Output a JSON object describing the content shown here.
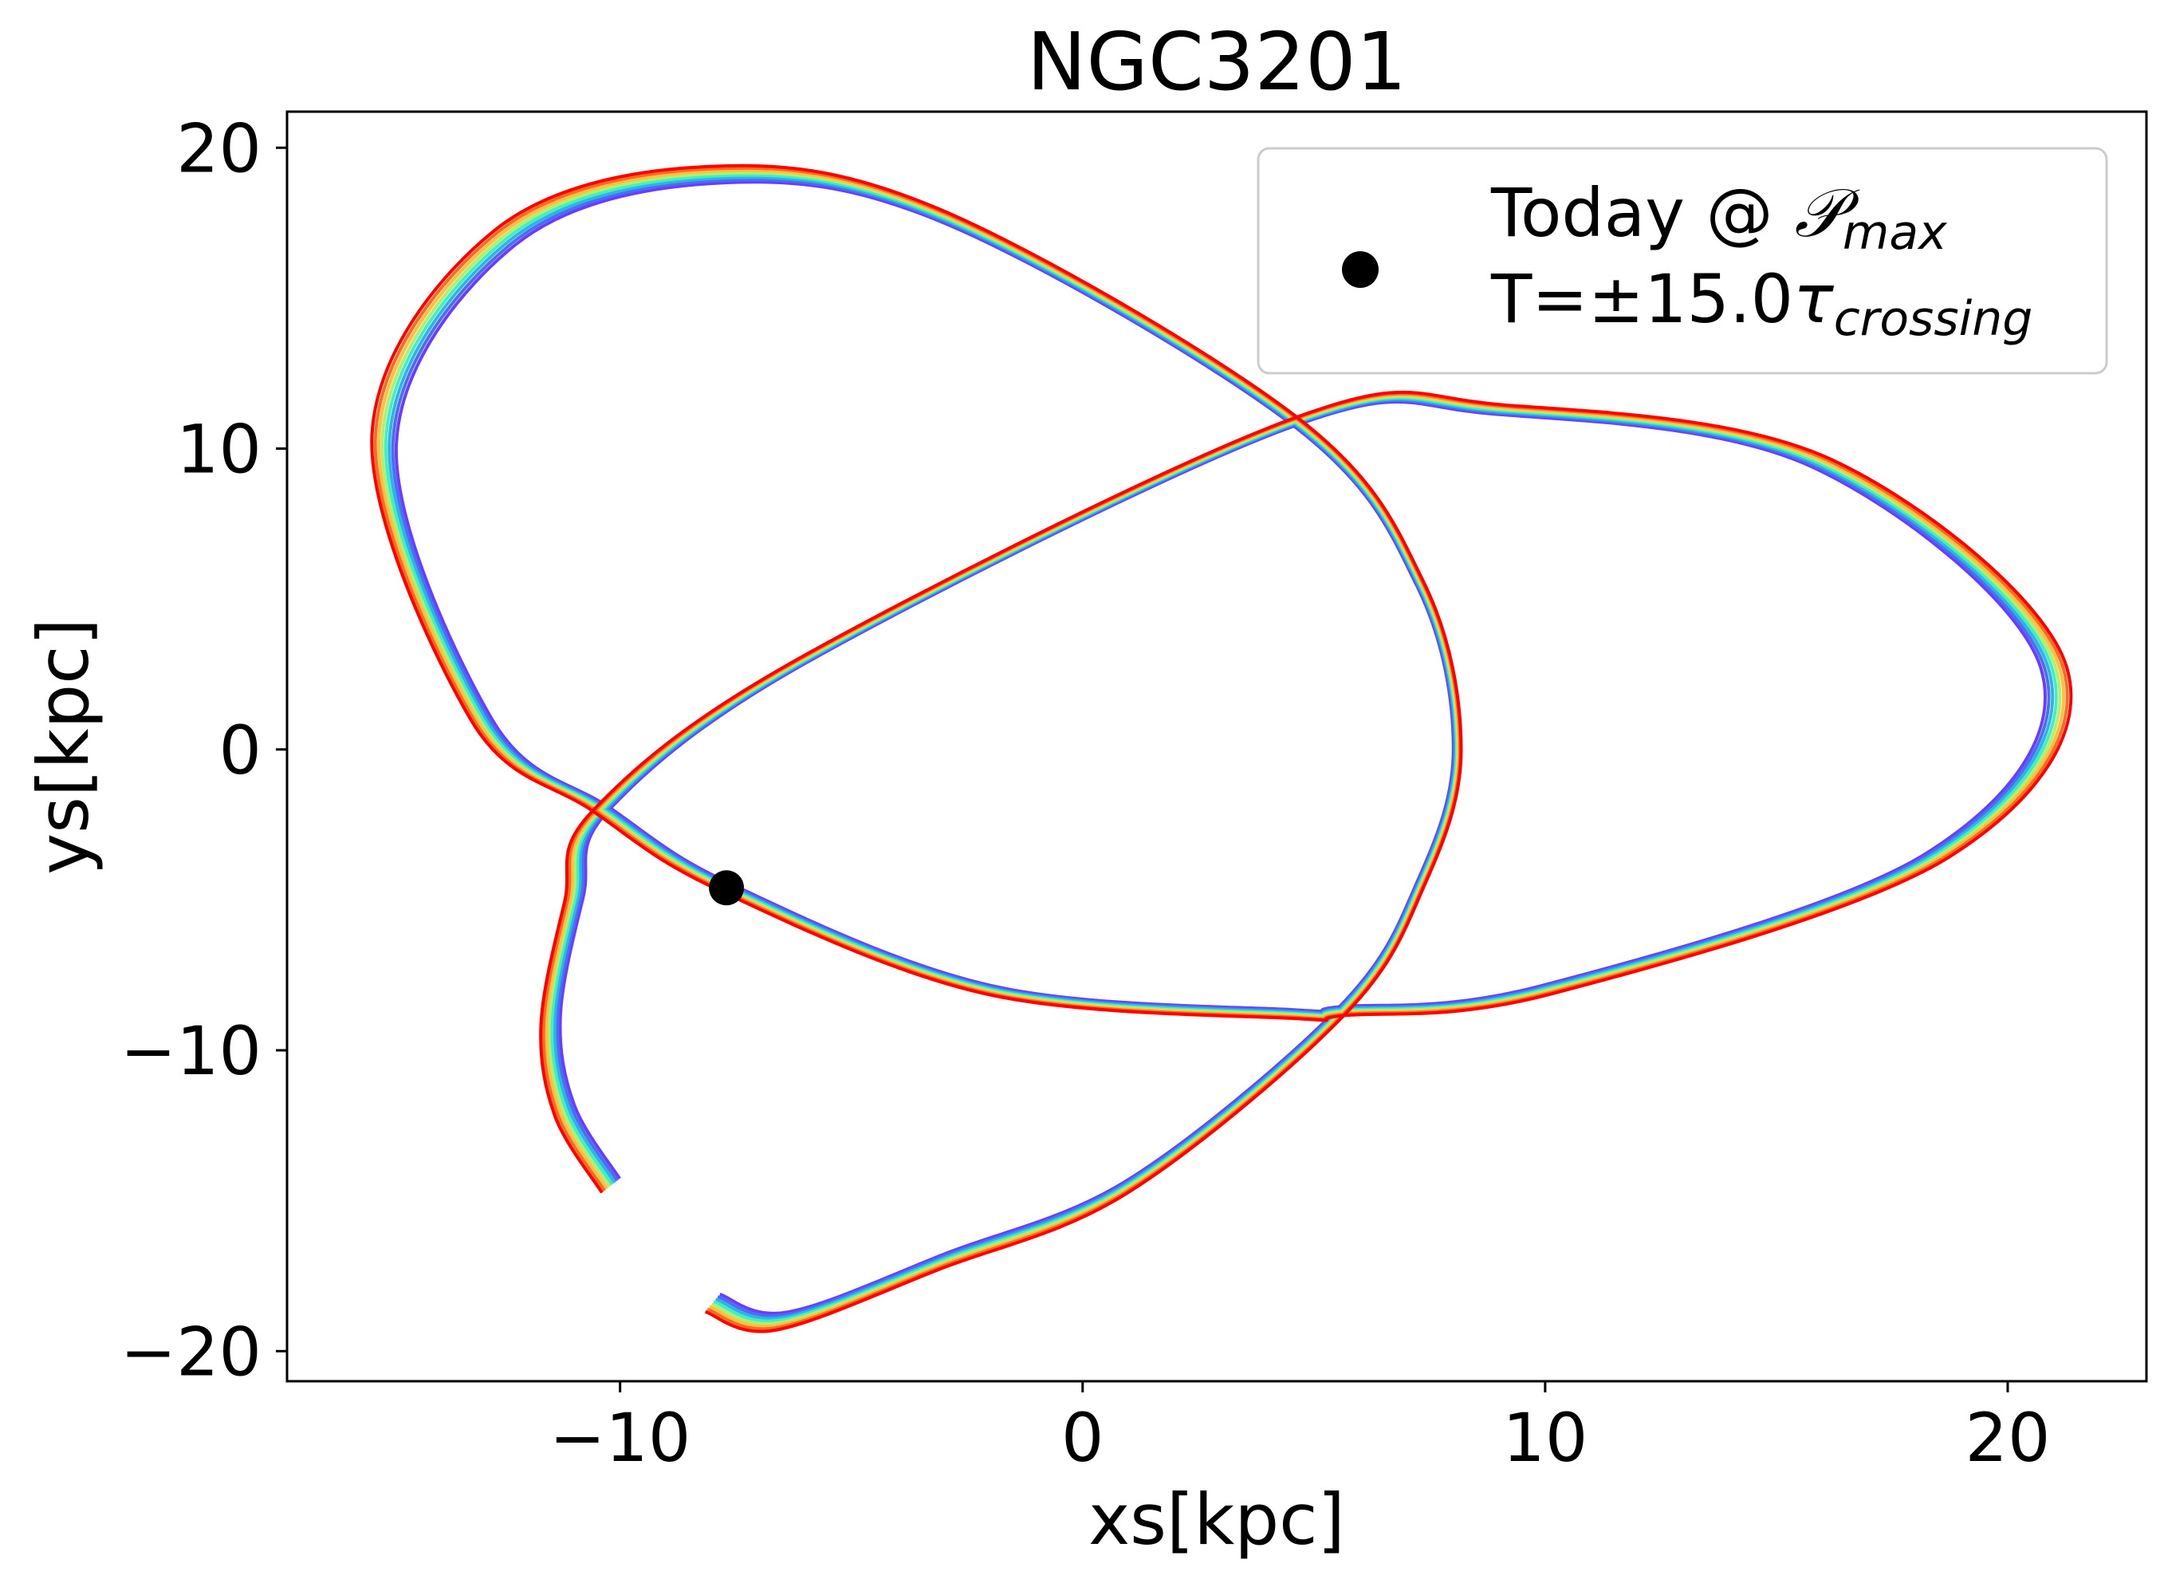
{
  "chart_data": {
    "type": "line",
    "title": "NGC3201",
    "xlabel": "xs[kpc]",
    "ylabel": "ys[kpc]",
    "xlim": [
      -17.2,
      23.0
    ],
    "ylim": [
      -21.0,
      21.2
    ],
    "xticks": [
      -10,
      0,
      10,
      20
    ],
    "yticks": [
      -20,
      -10,
      0,
      10,
      20
    ],
    "xtick_labels": [
      "−10",
      "0",
      "10",
      "20"
    ],
    "ytick_labels": [
      "−20",
      "−10",
      "0",
      "10",
      "20"
    ],
    "grid": false,
    "legend_position": "top-right",
    "legend": {
      "marker_color": "#000000",
      "line1_prefix": "Today @ ",
      "line1_math": "𝒫",
      "line1_sub": "max",
      "line2_prefix": "T=±15.0",
      "line2_math": "τ",
      "line2_sub": "crossing"
    },
    "today_point": {
      "x": -7.7,
      "y": -4.6
    },
    "orbit_colormap": "rainbow",
    "orbit_colors": [
      "#6a3cff",
      "#4b6cf5",
      "#2fb3e6",
      "#40f0c0",
      "#b0f070",
      "#ffc040",
      "#ff6a20",
      "#ff0000"
    ],
    "orbit_path_waypoints": [
      {
        "x": -10.2,
        "y": -14.5
      },
      {
        "x": -11.2,
        "y": -12.0
      },
      {
        "x": -11.5,
        "y": -9.0
      },
      {
        "x": -11.0,
        "y": -5.0
      },
      {
        "x": -10.4,
        "y": -2.0
      },
      {
        "x": -6.0,
        "y": 3.0
      },
      {
        "x": 4.6,
        "y": 10.9
      },
      {
        "x": 9.0,
        "y": 11.3
      },
      {
        "x": 16.0,
        "y": 9.5
      },
      {
        "x": 21.0,
        "y": 2.7
      },
      {
        "x": 18.5,
        "y": -3.5
      },
      {
        "x": 10.0,
        "y": -8.0
      },
      {
        "x": 5.6,
        "y": -8.7
      },
      {
        "x": 4.6,
        "y": -8.8
      },
      {
        "x": -2.0,
        "y": -8.0
      },
      {
        "x": -7.7,
        "y": -4.6
      },
      {
        "x": -10.4,
        "y": -2.0
      },
      {
        "x": -13.0,
        "y": 1.0
      },
      {
        "x": -15.1,
        "y": 10.3
      },
      {
        "x": -12.5,
        "y": 17.0
      },
      {
        "x": -8.0,
        "y": 19.1
      },
      {
        "x": -3.0,
        "y": 17.7
      },
      {
        "x": 4.6,
        "y": 10.9
      },
      {
        "x": 7.3,
        "y": 5.5
      },
      {
        "x": 8.1,
        "y": 0.0
      },
      {
        "x": 7.3,
        "y": -4.5
      },
      {
        "x": 5.6,
        "y": -8.7
      },
      {
        "x": 1.0,
        "y": -14.5
      },
      {
        "x": -3.0,
        "y": -17.0
      },
      {
        "x": -6.5,
        "y": -19.0
      },
      {
        "x": -8.0,
        "y": -18.4
      }
    ]
  }
}
